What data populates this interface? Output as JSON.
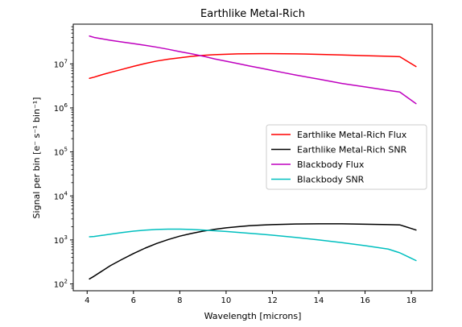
{
  "chart_data": {
    "type": "line",
    "title": "Earthlike Metal-Rich",
    "xlabel": "Wavelength [microns]",
    "ylabel": "Signal per bin [e⁻ s⁻¹ bin⁻¹]",
    "xlim": [
      3.4,
      18.9
    ],
    "ylim": [
      70,
      80000000
    ],
    "yscale": "log",
    "x_ticks": [
      4,
      6,
      8,
      10,
      12,
      14,
      16,
      18
    ],
    "x_tick_labels": [
      "4",
      "6",
      "8",
      "10",
      "12",
      "14",
      "16",
      "18"
    ],
    "y_ticks": [
      100,
      1000,
      10000,
      100000,
      1000000,
      10000000
    ],
    "y_tick_labels": [
      {
        "base": "10",
        "exp": "2"
      },
      {
        "base": "10",
        "exp": "3"
      },
      {
        "base": "10",
        "exp": "4"
      },
      {
        "base": "10",
        "exp": "5"
      },
      {
        "base": "10",
        "exp": "6"
      },
      {
        "base": "10",
        "exp": "7"
      }
    ],
    "grid": false,
    "legend_position": "right",
    "series": [
      {
        "name": "Earthlike Metal-Rich Flux",
        "color": "#ff0000",
        "x": [
          4.1,
          4.3,
          4.6,
          5.0,
          5.5,
          6.0,
          6.5,
          7.0,
          7.5,
          8.0,
          8.5,
          9.0,
          9.5,
          10.0,
          10.5,
          11.0,
          11.5,
          12.0,
          12.5,
          13.0,
          14.0,
          15.0,
          16.0,
          17.0,
          17.5,
          18.2
        ],
        "y": [
          4700000,
          5000000,
          5600000,
          6400000,
          7500000,
          8800000,
          10200000,
          11600000,
          12800000,
          13800000,
          14800000,
          15600000,
          16200000,
          16600000,
          16900000,
          17000000,
          17100000,
          17100000,
          17000000,
          16900000,
          16500000,
          16000000,
          15400000,
          14900000,
          14600000,
          8700000
        ]
      },
      {
        "name": "Earthlike Metal-Rich SNR",
        "color": "#000000",
        "x": [
          4.1,
          4.3,
          4.6,
          5.0,
          5.5,
          6.0,
          6.5,
          7.0,
          7.5,
          8.0,
          8.5,
          9.0,
          9.5,
          10.0,
          10.5,
          11.0,
          11.5,
          12.0,
          12.5,
          13.0,
          14.0,
          15.0,
          16.0,
          17.0,
          17.5,
          18.2
        ],
        "y": [
          130,
          150,
          190,
          260,
          360,
          490,
          650,
          830,
          1020,
          1220,
          1400,
          1580,
          1740,
          1880,
          2000,
          2100,
          2170,
          2230,
          2270,
          2300,
          2330,
          2320,
          2280,
          2230,
          2200,
          1680
        ]
      },
      {
        "name": "Blackbody Flux",
        "color": "#bf00bf",
        "x": [
          4.1,
          4.3,
          4.6,
          5.0,
          5.5,
          6.0,
          6.5,
          7.0,
          7.5,
          8.0,
          8.5,
          9.0,
          9.5,
          10.0,
          10.5,
          11.0,
          11.5,
          12.0,
          12.5,
          13.0,
          14.0,
          15.0,
          16.0,
          17.0,
          17.5,
          18.2
        ],
        "y": [
          43000000,
          40000000,
          37500000,
          34500000,
          31500000,
          29000000,
          26500000,
          24000000,
          21500000,
          19000000,
          17000000,
          15000000,
          13000000,
          11500000,
          10200000,
          9000000,
          8000000,
          7100000,
          6300000,
          5600000,
          4500000,
          3600000,
          3000000,
          2500000,
          2300000,
          1250000
        ]
      },
      {
        "name": "Blackbody SNR",
        "color": "#00bfbf",
        "x": [
          4.1,
          4.3,
          4.6,
          5.0,
          5.5,
          6.0,
          6.5,
          7.0,
          7.5,
          8.0,
          8.5,
          9.0,
          9.5,
          10.0,
          10.5,
          11.0,
          11.5,
          12.0,
          12.5,
          13.0,
          14.0,
          15.0,
          16.0,
          17.0,
          17.5,
          18.2
        ],
        "y": [
          1180,
          1200,
          1260,
          1350,
          1470,
          1580,
          1670,
          1730,
          1760,
          1760,
          1730,
          1680,
          1620,
          1560,
          1490,
          1420,
          1350,
          1280,
          1210,
          1140,
          1000,
          870,
          740,
          620,
          510,
          340
        ]
      }
    ]
  }
}
